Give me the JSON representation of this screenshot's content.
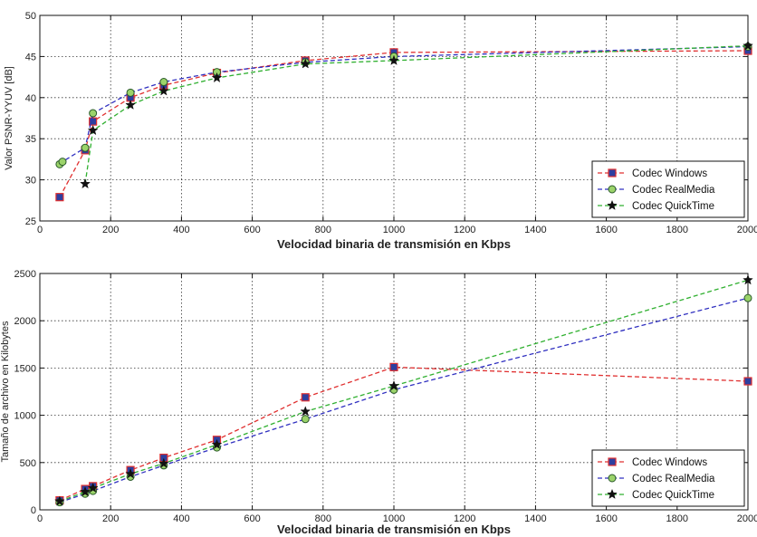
{
  "chart_data": [
    {
      "type": "line",
      "xlabel": "Velocidad binaria de transmisión en Kbps",
      "ylabel": "Valor PSNR-YYUV [dB]",
      "xlim": [
        0,
        2000
      ],
      "ylim": [
        25,
        50
      ],
      "xticks": [
        0,
        200,
        400,
        600,
        800,
        1000,
        1200,
        1400,
        1600,
        1800,
        2000
      ],
      "yticks": [
        25,
        30,
        35,
        40,
        45,
        50
      ],
      "grid": true,
      "legend_position": "bottom-right",
      "series": [
        {
          "name": "Codec Windows",
          "color": "#e03030",
          "marker": "square",
          "x": [
            56,
            128,
            150,
            256,
            350,
            500,
            750,
            1000,
            2000
          ],
          "y": [
            27.9,
            33.6,
            37.1,
            40.0,
            41.5,
            43.0,
            44.5,
            45.5,
            45.7
          ]
        },
        {
          "name": "Codec RealMedia",
          "color": "#3030c0",
          "marker": "circle",
          "x": [
            56,
            64,
            128,
            150,
            256,
            350,
            500,
            750,
            1000,
            2000
          ],
          "y": [
            31.9,
            32.2,
            33.9,
            38.1,
            40.6,
            41.9,
            43.1,
            44.3,
            45.0,
            46.2
          ]
        },
        {
          "name": "Codec QuickTime",
          "color": "#30b030",
          "marker": "star",
          "x": [
            128,
            150,
            256,
            350,
            500,
            750,
            1000,
            2000
          ],
          "y": [
            29.5,
            36.0,
            39.1,
            40.8,
            42.4,
            44.1,
            44.5,
            46.3
          ]
        }
      ]
    },
    {
      "type": "line",
      "xlabel": "Velocidad binaria de transmisión en Kbps",
      "ylabel": "Tamaño de archivo en Kilobytes",
      "xlim": [
        0,
        2000
      ],
      "ylim": [
        0,
        2500
      ],
      "xticks": [
        0,
        200,
        400,
        600,
        800,
        1000,
        1200,
        1400,
        1600,
        1800,
        2000
      ],
      "yticks": [
        0,
        500,
        1000,
        1500,
        2000,
        2500
      ],
      "grid": true,
      "legend_position": "bottom-right",
      "series": [
        {
          "name": "Codec Windows",
          "color": "#e03030",
          "marker": "square",
          "x": [
            56,
            128,
            150,
            256,
            350,
            500,
            750,
            1000,
            2000
          ],
          "y": [
            100,
            220,
            250,
            420,
            550,
            740,
            1190,
            1510,
            1360
          ]
        },
        {
          "name": "Codec RealMedia",
          "color": "#3030c0",
          "marker": "circle",
          "x": [
            56,
            128,
            150,
            256,
            350,
            500,
            750,
            1000,
            2000
          ],
          "y": [
            80,
            170,
            200,
            350,
            470,
            660,
            960,
            1270,
            2240
          ]
        },
        {
          "name": "Codec QuickTime",
          "color": "#30b030",
          "marker": "star",
          "x": [
            56,
            128,
            150,
            256,
            350,
            500,
            750,
            1000,
            2000
          ],
          "y": [
            90,
            190,
            230,
            380,
            490,
            690,
            1040,
            1310,
            2430
          ]
        }
      ]
    }
  ]
}
